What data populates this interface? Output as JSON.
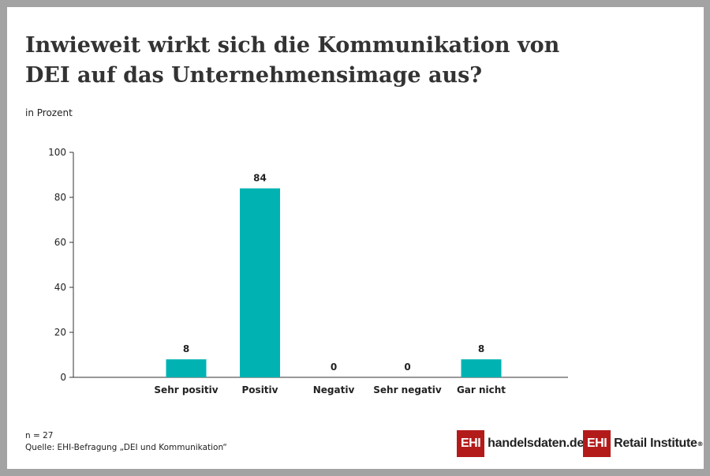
{
  "title": "Inwieweit wirkt sich die Kommunikation von DEI auf das Unternehmensimage aus?",
  "unit_label": "in Prozent",
  "colors": {
    "bar": "#00b3b2",
    "axis": "#333333"
  },
  "chart_data": {
    "type": "bar",
    "title": "Inwieweit wirkt sich die Kommunikation von DEI auf das Unternehmensimage aus?",
    "xlabel": "",
    "ylabel": "in Prozent",
    "categories": [
      "Sehr positiv",
      "Positiv",
      "Negativ",
      "Sehr negativ",
      "Gar nicht"
    ],
    "values": [
      8,
      84,
      0,
      0,
      8
    ],
    "ylim": [
      0,
      100
    ],
    "yticks": [
      0,
      20,
      40,
      60,
      80,
      100
    ],
    "grid": false,
    "legend": "none"
  },
  "footer": {
    "sample": "n = 27",
    "source": "Quelle: EHI-Befragung „DEI und Kommunikation“"
  },
  "logos": {
    "handelsdaten": {
      "badge": "EHI",
      "text": "handelsdaten.de"
    },
    "retail": {
      "badge": "EHI",
      "text": "Retail Institute",
      "mark": "®"
    }
  }
}
